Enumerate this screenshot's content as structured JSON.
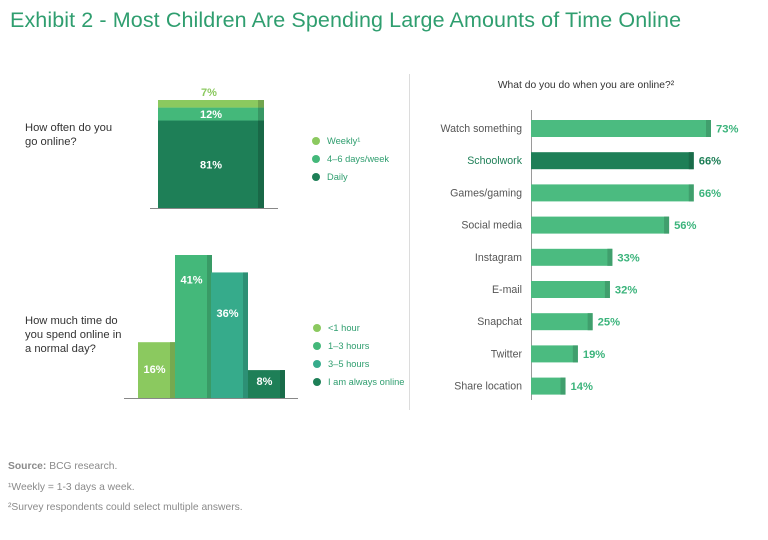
{
  "title": "Exhibit 2 - Most Children Are Spending Large Amounts of Time Online",
  "colors": {
    "title": "#2f9e6f",
    "light": "#8bc95f",
    "medium": "#44b87a",
    "teal": "#36ab8b",
    "dark": "#1e7f57",
    "label_green": "#3cb47c",
    "label_dark": "#1e7f57"
  },
  "chart_data": [
    {
      "type": "stacked-bar",
      "question": "How often do you go online?",
      "segments": [
        {
          "name": "Weekly¹",
          "value": 7,
          "label": "7%",
          "color": "#8bc95f"
        },
        {
          "name": "4–6 days/week",
          "value": 12,
          "label": "12%",
          "color": "#44b87a"
        },
        {
          "name": "Daily",
          "value": 81,
          "label": "81%",
          "color": "#1e7f57"
        }
      ]
    },
    {
      "type": "bar",
      "question": "How much time do you spend online in a normal day?",
      "categories": [
        "<1 hour",
        "1–3 hours",
        "3–5 hours",
        "I am always online"
      ],
      "values": [
        16,
        41,
        36,
        8
      ],
      "labels": [
        "16%",
        "41%",
        "36%",
        "8%"
      ],
      "colors": [
        "#8bc95f",
        "#44b87a",
        "#36ab8b",
        "#1e7f57"
      ]
    },
    {
      "type": "horizontal-bar",
      "title": "What do you do when you are online?²",
      "categories": [
        "Watch something",
        "Schoolwork",
        "Games/gaming",
        "Social media",
        "Instagram",
        "E-mail",
        "Snapchat",
        "Twitter",
        "Share location"
      ],
      "values": [
        73,
        66,
        66,
        56,
        33,
        32,
        25,
        19,
        14
      ],
      "labels": [
        "73%",
        "66%",
        "66%",
        "56%",
        "33%",
        "32%",
        "25%",
        "19%",
        "14%"
      ],
      "highlight": "Schoolwork"
    }
  ],
  "footnotes": {
    "source_label": "Source:",
    "source_text": " BCG research.",
    "note1": "¹Weekly = 1-3 days a week.",
    "note2": "²Survey respondents could select multiple answers."
  }
}
